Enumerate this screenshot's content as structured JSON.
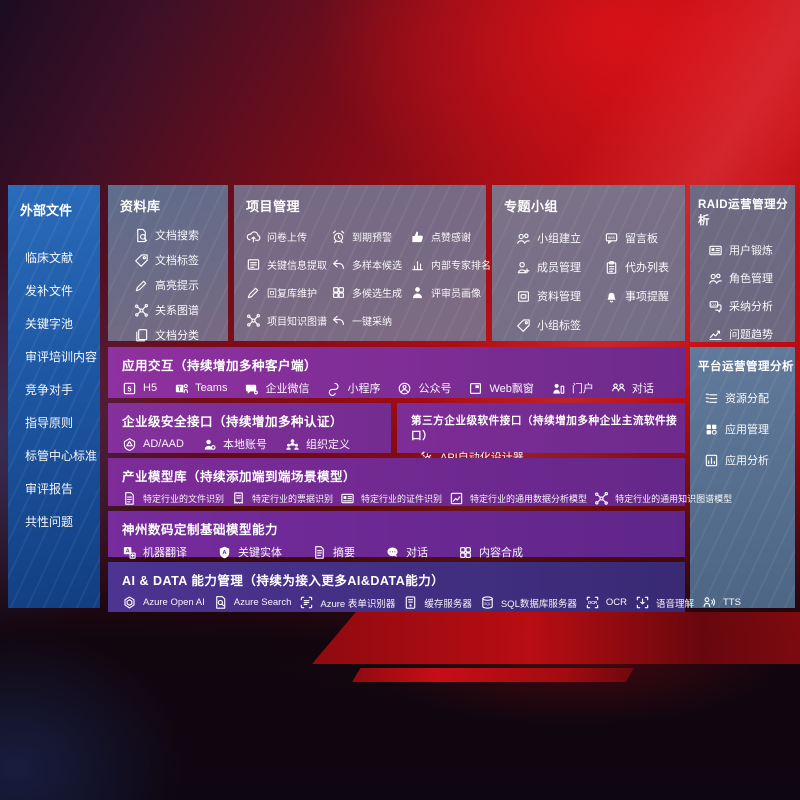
{
  "colors": {
    "sidebar_blue": "#1d57a4",
    "panel_gray": "#746a84",
    "panel_slate": "#5b7493",
    "row_purple": "#7b2d96",
    "row_indigo": "#45308a",
    "background_red": "#c30e14"
  },
  "sidebar": {
    "title": "外部文件",
    "items": [
      "临床文献",
      "发补文件",
      "关键字池",
      "审评培训内容",
      "竞争对手",
      "指导原则",
      "标管中心标准",
      "审评报告",
      "共性问题"
    ]
  },
  "panels": {
    "library": {
      "title": "资料库",
      "items": [
        {
          "label": "文档搜索",
          "icon": "doc-search-icon"
        },
        {
          "label": "文档标签",
          "icon": "tag-icon"
        },
        {
          "label": "高亮提示",
          "icon": "pen-icon"
        },
        {
          "label": "关系图谱",
          "icon": "graph-icon"
        },
        {
          "label": "文档分类",
          "icon": "copy-icon"
        }
      ]
    },
    "project": {
      "title": "项目管理",
      "items": [
        {
          "label": "问卷上传",
          "icon": "cloud-upload-icon"
        },
        {
          "label": "到期预警",
          "icon": "alarm-icon"
        },
        {
          "label": "点赞感谢",
          "icon": "thumbs-up-icon"
        },
        {
          "label": "关键信息提取",
          "icon": "extract-icon"
        },
        {
          "label": "多样本候选",
          "icon": "reply-icon"
        },
        {
          "label": "内部专家排名",
          "icon": "ranking-icon"
        },
        {
          "label": "回复库维护",
          "icon": "pen-icon"
        },
        {
          "label": "多候选生成",
          "icon": "grid-icon"
        },
        {
          "label": "评审员画像",
          "icon": "person-icon"
        },
        {
          "label": "项目知识图谱",
          "icon": "graph-icon"
        },
        {
          "label": "一键采纳",
          "icon": "reply-icon"
        }
      ]
    },
    "group": {
      "title": "专题小组",
      "items": [
        {
          "label": "小组建立",
          "icon": "users-icon"
        },
        {
          "label": "留言板",
          "icon": "bbs-icon"
        },
        {
          "label": "成员管理",
          "icon": "person-plus-icon"
        },
        {
          "label": "代办列表",
          "icon": "clipboard-icon"
        },
        {
          "label": "资料管理",
          "icon": "archive-icon"
        },
        {
          "label": "事项提醒",
          "icon": "bell-icon"
        },
        {
          "label": "小组标签",
          "icon": "tag-icon"
        }
      ]
    },
    "raid": {
      "title": "RAID运营管理分析",
      "items": [
        {
          "label": "用户锻炼",
          "icon": "id-card-icon"
        },
        {
          "label": "角色管理",
          "icon": "users-icon"
        },
        {
          "label": "采纳分析",
          "icon": "qa-icon"
        },
        {
          "label": "问题趋势",
          "icon": "trend-icon"
        }
      ]
    },
    "platform": {
      "title": "平台运营管理分析",
      "items": [
        {
          "label": "资源分配",
          "icon": "list-icon"
        },
        {
          "label": "应用管理",
          "icon": "apps-icon"
        },
        {
          "label": "应用分析",
          "icon": "chart-icon"
        }
      ]
    }
  },
  "rows": {
    "interaction": {
      "title": "应用交互（持续增加多种客户端）",
      "items": [
        {
          "label": "H5",
          "icon": "h5-icon"
        },
        {
          "label": "Teams",
          "icon": "teams-icon"
        },
        {
          "label": "企业微信",
          "icon": "wechat-work-icon"
        },
        {
          "label": "小程序",
          "icon": "miniapp-icon"
        },
        {
          "label": "公众号",
          "icon": "public-account-icon"
        },
        {
          "label": "Web飘窗",
          "icon": "web-window-icon"
        },
        {
          "label": "门户",
          "icon": "portal-icon"
        },
        {
          "label": "对话",
          "icon": "dialog-icon"
        }
      ]
    },
    "security": {
      "title": "企业级安全接口（持续增加多种认证）",
      "items": [
        {
          "label": "AD/AAD",
          "icon": "shield-icon"
        },
        {
          "label": "本地账号",
          "icon": "account-icon"
        },
        {
          "label": "组织定义",
          "icon": "org-icon"
        }
      ]
    },
    "thirdparty": {
      "title": "第三方企业级软件接口（持续增加多种企业主流软件接口）",
      "items": [
        {
          "label": "API自动化设计器",
          "icon": "api-gear-icon"
        }
      ]
    },
    "models": {
      "title": "产业模型库（持续添加端到端场景模型）",
      "items": [
        {
          "label": "特定行业的文件识别",
          "icon": "doc-icon"
        },
        {
          "label": "特定行业的票据识别",
          "icon": "receipt-icon"
        },
        {
          "label": "特定行业的证件识别",
          "icon": "id-card-icon"
        },
        {
          "label": "特定行业的通用数据分析模型",
          "icon": "image-chart-icon"
        },
        {
          "label": "特定行业的通用知识图谱模型",
          "icon": "graph-icon"
        }
      ]
    },
    "basemodel": {
      "title": "神州数码定制基础模型能力",
      "items": [
        {
          "label": "机器翻译",
          "icon": "translate-icon"
        },
        {
          "label": "关键实体",
          "icon": "entity-icon"
        },
        {
          "label": "摘要",
          "icon": "summary-icon"
        },
        {
          "label": "对话",
          "icon": "chat-icon"
        },
        {
          "label": "内容合成",
          "icon": "grid-icon"
        }
      ]
    },
    "aidata": {
      "title": "AI & DATA 能力管理（持续为接入更多AI&DATA能力）",
      "items": [
        {
          "label": "Azure Open AI",
          "icon": "openai-icon"
        },
        {
          "label": "Azure Search",
          "icon": "search-doc-icon"
        },
        {
          "label": "Azure 表单识别器",
          "icon": "form-icon"
        },
        {
          "label": "缓存服务器",
          "icon": "server-icon"
        },
        {
          "label": "SQL数据库服务器",
          "icon": "database-icon"
        },
        {
          "label": "OCR",
          "icon": "ocr-icon"
        },
        {
          "label": "语音理解",
          "icon": "speech-icon"
        },
        {
          "label": "TTS",
          "icon": "tts-icon"
        }
      ]
    }
  }
}
